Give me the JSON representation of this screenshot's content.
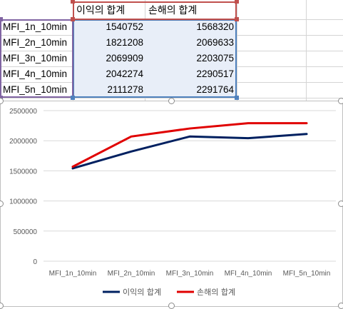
{
  "table": {
    "headers": [
      "이익의 합계",
      "손해의 합계"
    ],
    "rows": [
      {
        "label": "MFI_1n_10min",
        "profit": "1540752",
        "loss": "1568320"
      },
      {
        "label": "MFI_2n_10min",
        "profit": "1821208",
        "loss": "2069633"
      },
      {
        "label": "MFI_3n_10min",
        "profit": "2069909",
        "loss": "2203075"
      },
      {
        "label": "MFI_4n_10min",
        "profit": "2042274",
        "loss": "2290517"
      },
      {
        "label": "MFI_5n_10min",
        "profit": "2111278",
        "loss": "2291764"
      }
    ]
  },
  "colors": {
    "label_range": "#8064a2",
    "header_range": "#c0504d",
    "value_range": "#4f81bd",
    "series_profit": "#002060",
    "series_loss": "#e00000"
  },
  "chart_data": {
    "type": "line",
    "categories": [
      "MFI_1n_10min",
      "MFI_2n_10min",
      "MFI_3n_10min",
      "MFI_4n_10min",
      "MFI_5n_10min"
    ],
    "series": [
      {
        "name": "이익의 합계",
        "values": [
          1540752,
          1821208,
          2069909,
          2042274,
          2111278
        ]
      },
      {
        "name": "손해의 합계",
        "values": [
          1568320,
          2069633,
          2203075,
          2290517,
          2291764
        ]
      }
    ],
    "yticks": [
      "0",
      "500000",
      "1000000",
      "1500000",
      "2000000",
      "2500000"
    ],
    "ylim": [
      0,
      2500000
    ],
    "grid": true,
    "legend": "bottom"
  }
}
